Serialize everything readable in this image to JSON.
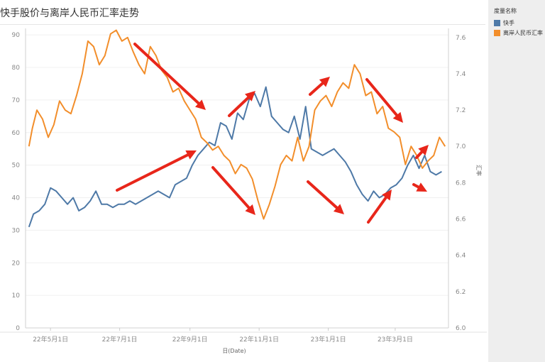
{
  "chart_data": {
    "type": "line",
    "title": "快手股价与离岸人民币汇率走势",
    "xlabel": "日(Date)",
    "ylabel_left": "",
    "ylabel_right": "汇率",
    "x_ticks": [
      "22年5月1日",
      "22年7月1日",
      "22年9月1日",
      "22年11月1日",
      "23年1月1日",
      "23年3月1日"
    ],
    "y_left_ticks": [
      0,
      10,
      20,
      30,
      40,
      50,
      60,
      70,
      80,
      90
    ],
    "y_right_ticks": [
      "6.0",
      "6.2",
      "6.4",
      "6.6",
      "6.8",
      "7.0",
      "7.2",
      "7.4",
      "7.6"
    ],
    "ylim_left": [
      0,
      92
    ],
    "ylim_right": [
      6.0,
      7.65
    ],
    "xlim": [
      "2022-04-09",
      "2023-04-17"
    ],
    "legend_title": "度量名称",
    "series": [
      {
        "name": "快手",
        "color": "#4e79a7",
        "axis": "left",
        "points": [
          [
            "2022-04-12",
            31
          ],
          [
            "2022-04-16",
            35
          ],
          [
            "2022-04-21",
            36
          ],
          [
            "2022-04-26",
            38
          ],
          [
            "2022-05-01",
            43
          ],
          [
            "2022-05-06",
            42
          ],
          [
            "2022-05-11",
            40
          ],
          [
            "2022-05-16",
            38
          ],
          [
            "2022-05-21",
            40
          ],
          [
            "2022-05-26",
            36
          ],
          [
            "2022-05-31",
            37
          ],
          [
            "2022-06-05",
            39
          ],
          [
            "2022-06-10",
            42
          ],
          [
            "2022-06-15",
            38
          ],
          [
            "2022-06-20",
            38
          ],
          [
            "2022-06-25",
            37
          ],
          [
            "2022-06-30",
            38
          ],
          [
            "2022-07-05",
            38
          ],
          [
            "2022-07-10",
            39
          ],
          [
            "2022-07-15",
            38
          ],
          [
            "2022-07-20",
            39
          ],
          [
            "2022-07-25",
            40
          ],
          [
            "2022-07-30",
            41
          ],
          [
            "2022-08-04",
            42
          ],
          [
            "2022-08-09",
            41
          ],
          [
            "2022-08-14",
            40
          ],
          [
            "2022-08-19",
            44
          ],
          [
            "2022-08-24",
            45
          ],
          [
            "2022-08-29",
            46
          ],
          [
            "2022-09-03",
            50
          ],
          [
            "2022-09-08",
            53
          ],
          [
            "2022-09-13",
            55
          ],
          [
            "2022-09-18",
            57
          ],
          [
            "2022-09-23",
            56
          ],
          [
            "2022-09-28",
            63
          ],
          [
            "2022-10-03",
            62
          ],
          [
            "2022-10-08",
            58
          ],
          [
            "2022-10-13",
            66
          ],
          [
            "2022-10-18",
            64
          ],
          [
            "2022-10-23",
            70
          ],
          [
            "2022-10-28",
            72
          ],
          [
            "2022-11-02",
            68
          ],
          [
            "2022-11-07",
            74
          ],
          [
            "2022-11-12",
            65
          ],
          [
            "2022-11-17",
            63
          ],
          [
            "2022-11-22",
            61
          ],
          [
            "2022-11-27",
            60
          ],
          [
            "2022-12-02",
            65
          ],
          [
            "2022-12-07",
            58
          ],
          [
            "2022-12-12",
            68
          ],
          [
            "2022-12-17",
            55
          ],
          [
            "2022-12-22",
            54
          ],
          [
            "2022-12-27",
            53
          ],
          [
            "2023-01-01",
            54
          ],
          [
            "2023-01-06",
            55
          ],
          [
            "2023-01-11",
            53
          ],
          [
            "2023-01-16",
            51
          ],
          [
            "2023-01-21",
            48
          ],
          [
            "2023-01-26",
            44
          ],
          [
            "2023-01-31",
            41
          ],
          [
            "2023-02-05",
            39
          ],
          [
            "2023-02-10",
            42
          ],
          [
            "2023-02-15",
            40
          ],
          [
            "2023-02-20",
            41
          ],
          [
            "2023-02-25",
            43
          ],
          [
            "2023-03-02",
            44
          ],
          [
            "2023-03-07",
            46
          ],
          [
            "2023-03-12",
            50
          ],
          [
            "2023-03-17",
            53
          ],
          [
            "2023-03-22",
            49
          ],
          [
            "2023-03-27",
            53
          ],
          [
            "2023-04-01",
            48
          ],
          [
            "2023-04-06",
            47
          ],
          [
            "2023-04-11",
            48
          ]
        ]
      },
      {
        "name": "离岸人民币汇率",
        "color": "#f28e2b",
        "axis": "right",
        "points": [
          [
            "2022-04-12",
            7.0
          ],
          [
            "2022-04-15",
            7.1
          ],
          [
            "2022-04-19",
            7.2
          ],
          [
            "2022-04-24",
            7.15
          ],
          [
            "2022-04-29",
            7.05
          ],
          [
            "2022-05-04",
            7.12
          ],
          [
            "2022-05-09",
            7.25
          ],
          [
            "2022-05-14",
            7.2
          ],
          [
            "2022-05-19",
            7.18
          ],
          [
            "2022-05-24",
            7.28
          ],
          [
            "2022-05-29",
            7.4
          ],
          [
            "2022-06-03",
            7.58
          ],
          [
            "2022-06-08",
            7.55
          ],
          [
            "2022-06-13",
            7.45
          ],
          [
            "2022-06-18",
            7.5
          ],
          [
            "2022-06-23",
            7.62
          ],
          [
            "2022-06-28",
            7.64
          ],
          [
            "2022-07-03",
            7.58
          ],
          [
            "2022-07-08",
            7.6
          ],
          [
            "2022-07-13",
            7.52
          ],
          [
            "2022-07-18",
            7.45
          ],
          [
            "2022-07-23",
            7.4
          ],
          [
            "2022-07-28",
            7.55
          ],
          [
            "2022-08-02",
            7.5
          ],
          [
            "2022-08-07",
            7.42
          ],
          [
            "2022-08-12",
            7.38
          ],
          [
            "2022-08-17",
            7.3
          ],
          [
            "2022-08-22",
            7.32
          ],
          [
            "2022-08-27",
            7.25
          ],
          [
            "2022-09-01",
            7.2
          ],
          [
            "2022-09-06",
            7.15
          ],
          [
            "2022-09-11",
            7.05
          ],
          [
            "2022-09-16",
            7.02
          ],
          [
            "2022-09-21",
            6.98
          ],
          [
            "2022-09-26",
            7.0
          ],
          [
            "2022-10-01",
            6.95
          ],
          [
            "2022-10-06",
            6.92
          ],
          [
            "2022-10-11",
            6.85
          ],
          [
            "2022-10-16",
            6.9
          ],
          [
            "2022-10-21",
            6.88
          ],
          [
            "2022-10-26",
            6.82
          ],
          [
            "2022-10-31",
            6.7
          ],
          [
            "2022-11-05",
            6.6
          ],
          [
            "2022-11-10",
            6.68
          ],
          [
            "2022-11-15",
            6.78
          ],
          [
            "2022-11-20",
            6.9
          ],
          [
            "2022-11-25",
            6.95
          ],
          [
            "2022-11-30",
            6.92
          ],
          [
            "2022-12-05",
            7.05
          ],
          [
            "2022-12-10",
            6.92
          ],
          [
            "2022-12-15",
            7.0
          ],
          [
            "2022-12-20",
            7.2
          ],
          [
            "2022-12-25",
            7.25
          ],
          [
            "2022-12-30",
            7.28
          ],
          [
            "2023-01-04",
            7.22
          ],
          [
            "2023-01-09",
            7.3
          ],
          [
            "2023-01-14",
            7.35
          ],
          [
            "2023-01-19",
            7.32
          ],
          [
            "2023-01-24",
            7.45
          ],
          [
            "2023-01-29",
            7.4
          ],
          [
            "2023-02-03",
            7.28
          ],
          [
            "2023-02-08",
            7.3
          ],
          [
            "2023-02-13",
            7.18
          ],
          [
            "2023-02-18",
            7.22
          ],
          [
            "2023-02-23",
            7.1
          ],
          [
            "2023-02-28",
            7.08
          ],
          [
            "2023-03-05",
            7.05
          ],
          [
            "2023-03-10",
            6.9
          ],
          [
            "2023-03-15",
            7.0
          ],
          [
            "2023-03-20",
            6.95
          ],
          [
            "2023-03-25",
            6.88
          ],
          [
            "2023-03-30",
            6.92
          ],
          [
            "2023-04-04",
            6.95
          ],
          [
            "2023-04-09",
            7.05
          ],
          [
            "2023-04-14",
            7.0
          ]
        ]
      }
    ],
    "arrow_color": "#e8261a",
    "grid": true,
    "legend_position": "right-panel"
  }
}
